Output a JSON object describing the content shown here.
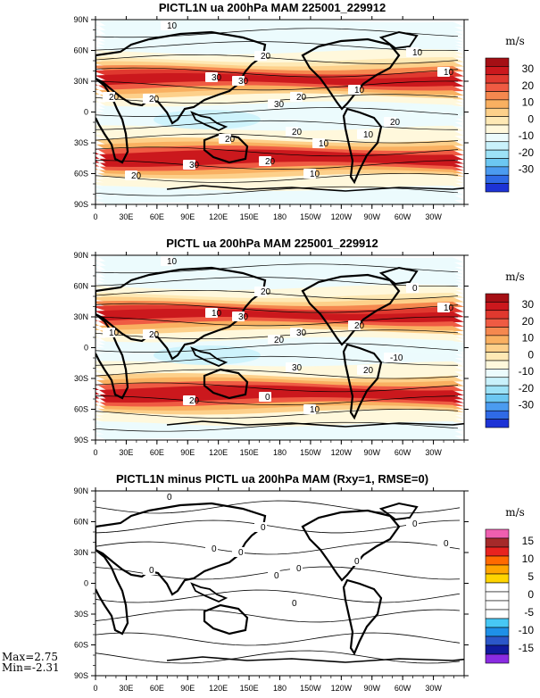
{
  "chart_data": [
    {
      "type": "heatmap",
      "title": "PICTL1N ua 200hPa MAM 225001_229912",
      "unit": "m/s",
      "x_ticks": [
        "0",
        "30E",
        "60E",
        "90E",
        "120E",
        "150E",
        "180",
        "150W",
        "120W",
        "90W",
        "60W",
        "30W"
      ],
      "y_ticks": [
        "90N",
        "60N",
        "30N",
        "0",
        "30S",
        "60S",
        "90S"
      ],
      "colorbar_labels": [
        "30",
        "20",
        "10",
        "0",
        "-10",
        "-20",
        "-30"
      ],
      "colorbar_colors": [
        "#a50f15",
        "#cb181d",
        "#e0392f",
        "#ef5b43",
        "#f5884f",
        "#f9b061",
        "#fdd08a",
        "#fee9b5",
        "#fff8dc",
        "#ecfbfd",
        "#c9f1fb",
        "#9de2f7",
        "#6cc7f2",
        "#4b9bf0",
        "#2f6ae6",
        "#1d33d6"
      ],
      "contour_labels": [
        "10",
        "20",
        "30",
        "20",
        "10",
        "30",
        "20",
        "10",
        "10",
        "20",
        "30",
        "20",
        "10",
        "20",
        "10",
        "30",
        "20",
        "10",
        "20",
        "20"
      ],
      "jet_max_ms": [
        35,
        35
      ],
      "jet_latitudes": [
        "30N",
        "45S"
      ]
    },
    {
      "type": "heatmap",
      "title": "PICTL ua 200hPa MAM 225001_229912",
      "unit": "m/s",
      "x_ticks": [
        "0",
        "30E",
        "60E",
        "90E",
        "120E",
        "150E",
        "180",
        "150W",
        "120W",
        "90W",
        "60W",
        "30W"
      ],
      "y_ticks": [
        "90N",
        "60N",
        "30N",
        "0",
        "30S",
        "60S",
        "90S"
      ],
      "colorbar_labels": [
        "30",
        "20",
        "10",
        "0",
        "-10",
        "-20",
        "-30"
      ],
      "colorbar_colors": [
        "#a50f15",
        "#cb181d",
        "#e0392f",
        "#ef5b43",
        "#f5884f",
        "#f9b061",
        "#fdd08a",
        "#fee9b5",
        "#fff8dc",
        "#ecfbfd",
        "#c9f1fb",
        "#9de2f7",
        "#6cc7f2",
        "#4b9bf0",
        "#2f6ae6",
        "#1d33d6"
      ],
      "contour_labels": [
        "10",
        "20",
        "30",
        "30",
        "20",
        "10",
        "20",
        "0",
        "10",
        "30",
        "20",
        "10",
        "20",
        "0",
        "10",
        "20",
        "-10"
      ],
      "jet_max_ms": [
        35,
        35
      ],
      "jet_latitudes": [
        "30N",
        "45S"
      ]
    },
    {
      "type": "heatmap",
      "title": "PICTL1N minus PICTL ua 200hPa MAM (Rxy=1, RMSE=0)",
      "unit": "m/s",
      "x_ticks": [
        "0",
        "30E",
        "60E",
        "90E",
        "120E",
        "150E",
        "180",
        "150W",
        "120W",
        "90W",
        "60W",
        "30W"
      ],
      "y_ticks": [
        "90N",
        "60N",
        "30N",
        "0",
        "30S",
        "60S",
        "90S"
      ],
      "colorbar_labels": [
        "15",
        "10",
        "5",
        "0",
        "-5",
        "-10",
        "-15"
      ],
      "colorbar_colors": [
        "#ef5fb0",
        "#a52a2a",
        "#e8231f",
        "#ff6a00",
        "#ffa500",
        "#ffd400",
        "#ffffff",
        "#ffffff",
        "#ffffff",
        "#ffffff",
        "#47c8f5",
        "#1e90e8",
        "#2b57c9",
        "#101a9e",
        "#8a2be2"
      ],
      "contour_labels": [
        "0",
        "0",
        "0",
        "0",
        "0",
        "0",
        "0",
        "0",
        "0",
        "0",
        "0"
      ],
      "stats": {
        "max": "Max=2.75",
        "min": "Min=-2.31"
      }
    }
  ]
}
